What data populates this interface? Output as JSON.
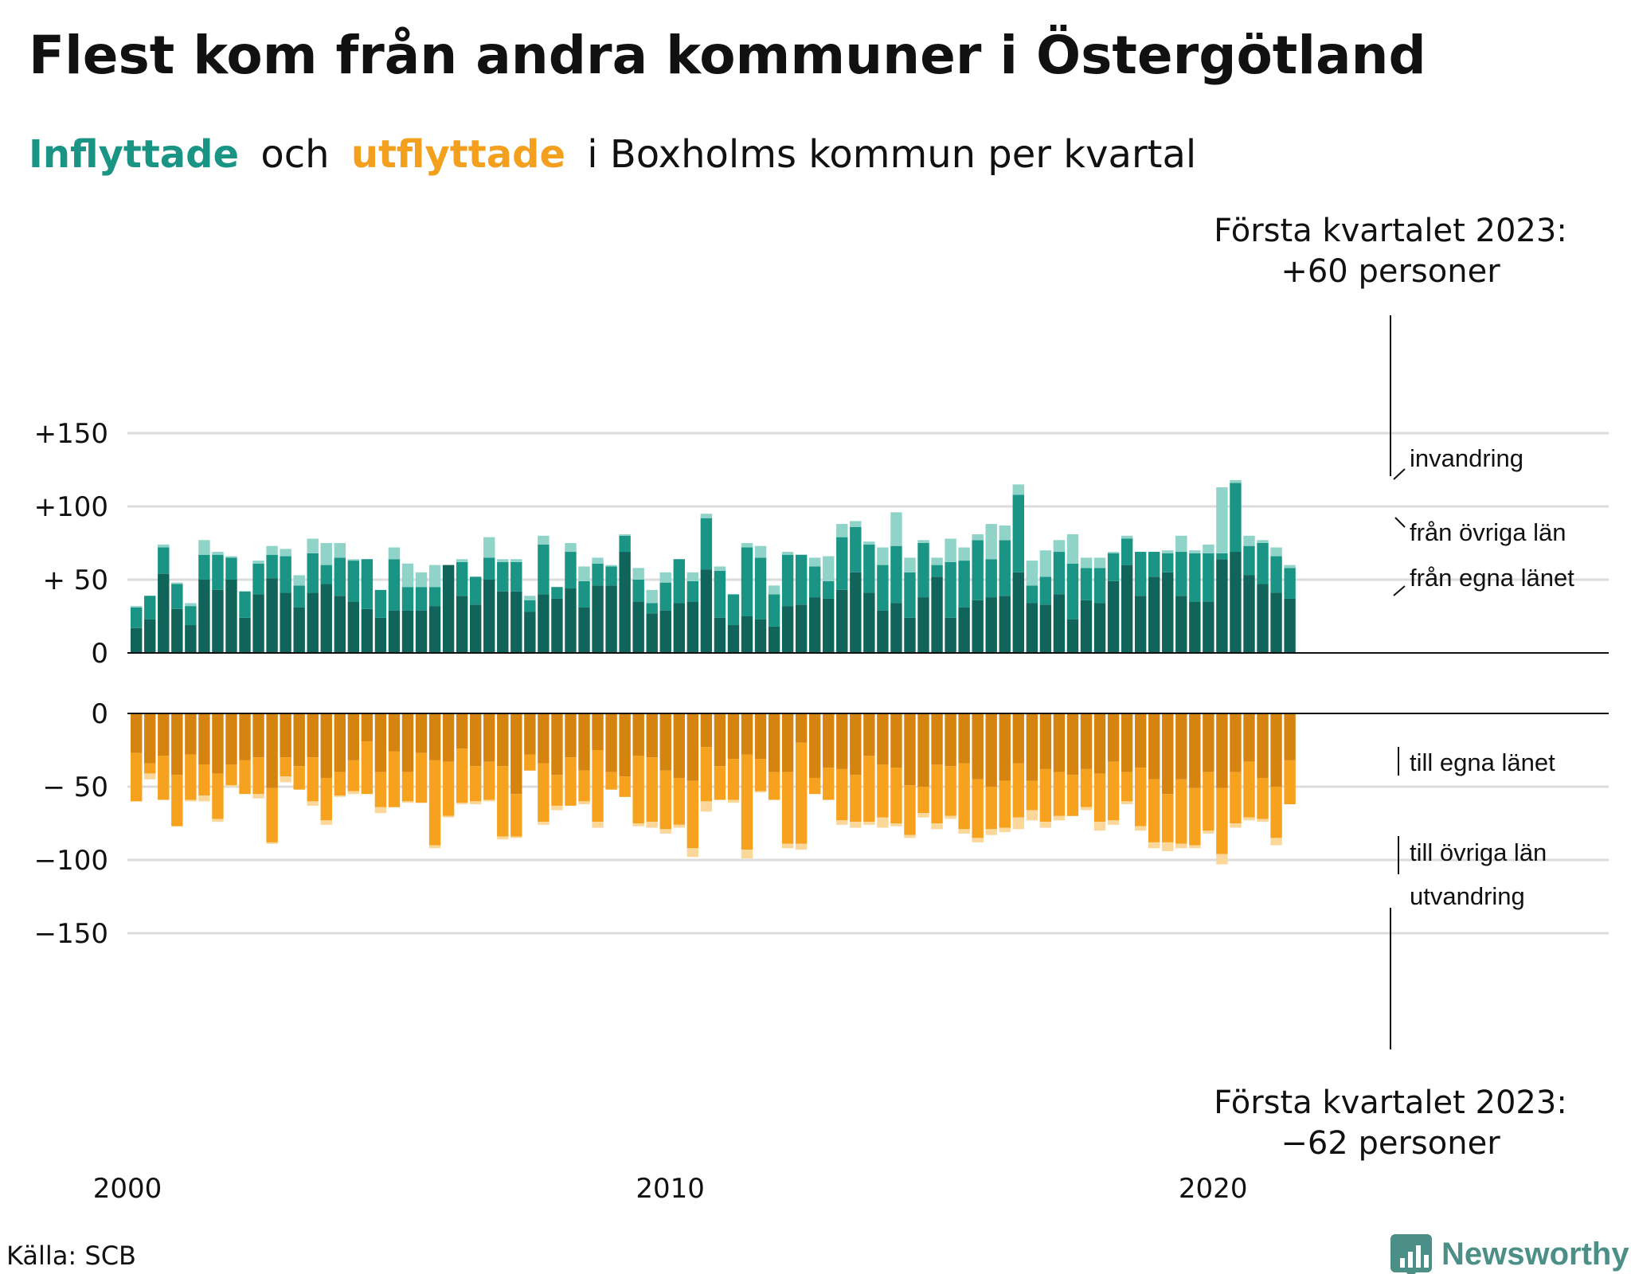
{
  "title": "Flest kom från andra kommuner i Östergötland",
  "subtitle": {
    "in_word": "Inflyttade",
    "middle": "och",
    "out_word": "utflyttade",
    "rest": "i Boxholms kommun per kvartal"
  },
  "source": "Källa: SCB",
  "brand": "Newsworthy",
  "annotation_top": [
    "Första kvartalet 2023:",
    "+60 personer"
  ],
  "annotation_bottom": [
    "Första kvartalet 2023:",
    "−62 personer"
  ],
  "colors": {
    "in_own": "#10645a",
    "in_other": "#1a9585",
    "in_abroad": "#8fd3c9",
    "out_own": "#d4840f",
    "out_other": "#f7a21e",
    "out_abroad": "#fbd79a",
    "brand": "#4b8f86"
  },
  "chart_data": {
    "type": "bar",
    "stacked": true,
    "x_start": "2000 Q1",
    "x_ticks": [
      "2000",
      "2010",
      "2020"
    ],
    "y_top": {
      "ticks": [
        "+150",
        "+100",
        "+ 50",
        "0"
      ],
      "ylim": [
        0,
        150
      ]
    },
    "y_bottom": {
      "ticks": [
        "0",
        "− 50",
        "−100",
        "−150"
      ],
      "ylim": [
        -150,
        0
      ]
    },
    "segment_labels_in": [
      "invandring",
      "från övriga län",
      "från egna länet"
    ],
    "segment_labels_out": [
      "till egna länet",
      "till övriga län",
      "utvandring"
    ],
    "inflows": {
      "own_county": [
        17,
        23,
        54,
        30,
        19,
        50,
        43,
        50,
        24,
        40,
        51,
        41,
        31,
        41,
        47,
        39,
        35,
        30,
        24,
        29,
        29,
        29,
        32,
        60,
        39,
        33,
        50,
        42,
        42,
        28,
        40,
        37,
        44,
        31,
        46,
        46,
        69,
        35,
        27,
        29,
        34,
        35,
        57,
        24,
        19,
        25,
        23,
        18,
        32,
        33,
        38,
        37,
        43,
        55,
        41,
        29,
        34,
        24,
        38,
        52,
        24,
        31,
        36,
        38,
        39,
        55,
        34,
        33,
        40,
        23,
        36,
        34,
        49,
        60,
        39,
        52,
        55,
        39,
        35,
        35,
        64,
        69,
        53,
        47,
        41,
        37
      ],
      "other_counties": [
        14,
        16,
        18,
        17,
        13,
        17,
        24,
        15,
        18,
        21,
        16,
        25,
        15,
        27,
        13,
        26,
        28,
        34,
        19,
        35,
        16,
        16,
        13,
        0,
        23,
        19,
        15,
        20,
        20,
        8,
        34,
        8,
        25,
        18,
        15,
        13,
        11,
        15,
        7,
        19,
        30,
        14,
        35,
        32,
        21,
        47,
        42,
        22,
        35,
        34,
        21,
        12,
        36,
        31,
        33,
        31,
        39,
        31,
        37,
        8,
        38,
        32,
        41,
        26,
        38,
        53,
        12,
        19,
        29,
        38,
        22,
        24,
        19,
        18,
        30,
        17,
        13,
        30,
        33,
        33,
        4,
        47,
        20,
        28,
        25,
        21
      ],
      "abroad": [
        1,
        0,
        2,
        1,
        2,
        10,
        2,
        1,
        0,
        2,
        6,
        5,
        7,
        10,
        15,
        10,
        1,
        0,
        0,
        8,
        16,
        10,
        15,
        0,
        2,
        0,
        14,
        2,
        2,
        3,
        6,
        0,
        6,
        10,
        4,
        1,
        1,
        8,
        9,
        7,
        0,
        6,
        3,
        3,
        0,
        3,
        8,
        6,
        2,
        0,
        6,
        17,
        9,
        4,
        2,
        12,
        23,
        10,
        2,
        5,
        16,
        9,
        4,
        24,
        10,
        7,
        17,
        18,
        8,
        20,
        7,
        7,
        1,
        2,
        0,
        0,
        2,
        11,
        2,
        6,
        45,
        2,
        7,
        2,
        6,
        2
      ]
    },
    "outflows": {
      "own_county": [
        -27,
        -34,
        -29,
        -42,
        -28,
        -35,
        -41,
        -35,
        -32,
        -30,
        -51,
        -30,
        -36,
        -30,
        -44,
        -40,
        -32,
        -19,
        -40,
        -26,
        -40,
        -27,
        -32,
        -33,
        -24,
        -36,
        -33,
        -36,
        -55,
        -28,
        -34,
        -42,
        -30,
        -39,
        -25,
        -40,
        -43,
        -29,
        -30,
        -39,
        -44,
        -46,
        -23,
        -36,
        -31,
        -28,
        -31,
        -40,
        -40,
        -20,
        -44,
        -37,
        -38,
        -42,
        -29,
        -35,
        -37,
        -49,
        -50,
        -35,
        -36,
        -34,
        -45,
        -50,
        -46,
        -34,
        -46,
        -38,
        -40,
        -42,
        -38,
        -41,
        -33,
        -40,
        -37,
        -45,
        -55,
        -45,
        -51,
        -40,
        -51,
        -40,
        -33,
        -44,
        -50,
        -32
      ],
      "other_counties": [
        -33,
        -7,
        -30,
        -35,
        -31,
        -21,
        -31,
        -14,
        -23,
        -25,
        -37,
        -13,
        -16,
        -30,
        -29,
        -16,
        -21,
        -36,
        -24,
        -38,
        -20,
        -34,
        -58,
        -37,
        -37,
        -24,
        -26,
        -48,
        -29,
        -11,
        -40,
        -21,
        -33,
        -21,
        -49,
        -12,
        -14,
        -46,
        -44,
        -40,
        -32,
        -46,
        -37,
        -23,
        -28,
        -65,
        -22,
        -19,
        -49,
        -69,
        -11,
        -22,
        -35,
        -32,
        -45,
        -36,
        -38,
        -34,
        -18,
        -40,
        -34,
        -45,
        -40,
        -29,
        -32,
        -37,
        -20,
        -36,
        -30,
        -28,
        -26,
        -33,
        -40,
        -20,
        -40,
        -43,
        -33,
        -44,
        -39,
        -40,
        -45,
        -35,
        -38,
        -28,
        -35,
        -30
      ],
      "abroad": [
        0,
        -4,
        0,
        0,
        -1,
        -4,
        -2,
        -1,
        0,
        -3,
        -1,
        -4,
        0,
        -3,
        -3,
        -1,
        -2,
        0,
        -4,
        0,
        -1,
        0,
        -2,
        -1,
        -1,
        -2,
        -1,
        -2,
        -1,
        0,
        -2,
        -3,
        0,
        -2,
        -4,
        0,
        0,
        -2,
        -4,
        -3,
        -2,
        -6,
        -7,
        0,
        -2,
        -6,
        -1,
        0,
        -3,
        -4,
        0,
        0,
        -3,
        -4,
        -2,
        -7,
        -2,
        -2,
        -3,
        -4,
        -2,
        -3,
        -3,
        -4,
        -3,
        -8,
        -7,
        -4,
        -3,
        0,
        -2,
        -6,
        -3,
        -2,
        -3,
        -4,
        -6,
        -3,
        -2,
        -2,
        -7,
        -3,
        -2,
        -2,
        -5,
        0
      ]
    }
  }
}
